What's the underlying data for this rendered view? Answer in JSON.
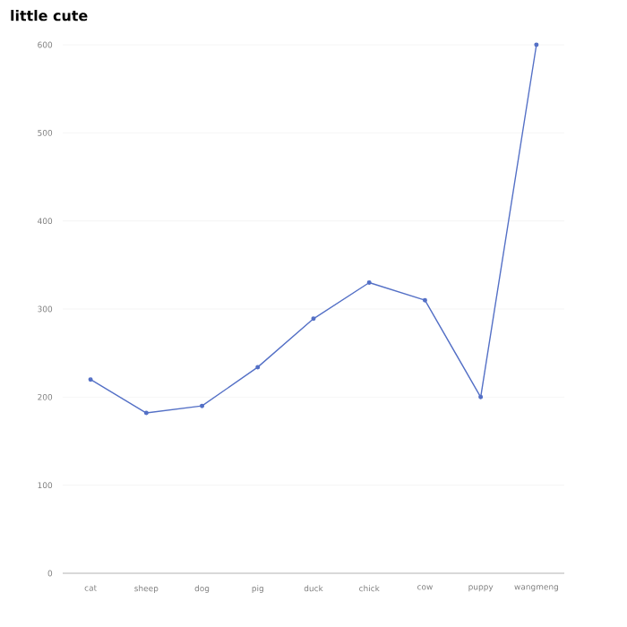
{
  "chart_data": {
    "type": "line",
    "title": "little cute",
    "categories": [
      "cat",
      "sheep",
      "dog",
      "pig",
      "duck",
      "chick",
      "cow",
      "puppy",
      "wangmeng"
    ],
    "values": [
      220,
      182,
      190,
      234,
      289,
      330,
      310,
      200,
      600
    ],
    "color": "#5470c6",
    "ylim": [
      0,
      600
    ],
    "yticks": [
      0,
      100,
      200,
      300,
      400,
      500,
      600
    ],
    "grid": "y",
    "marker": "circle",
    "line_style": "solid"
  }
}
